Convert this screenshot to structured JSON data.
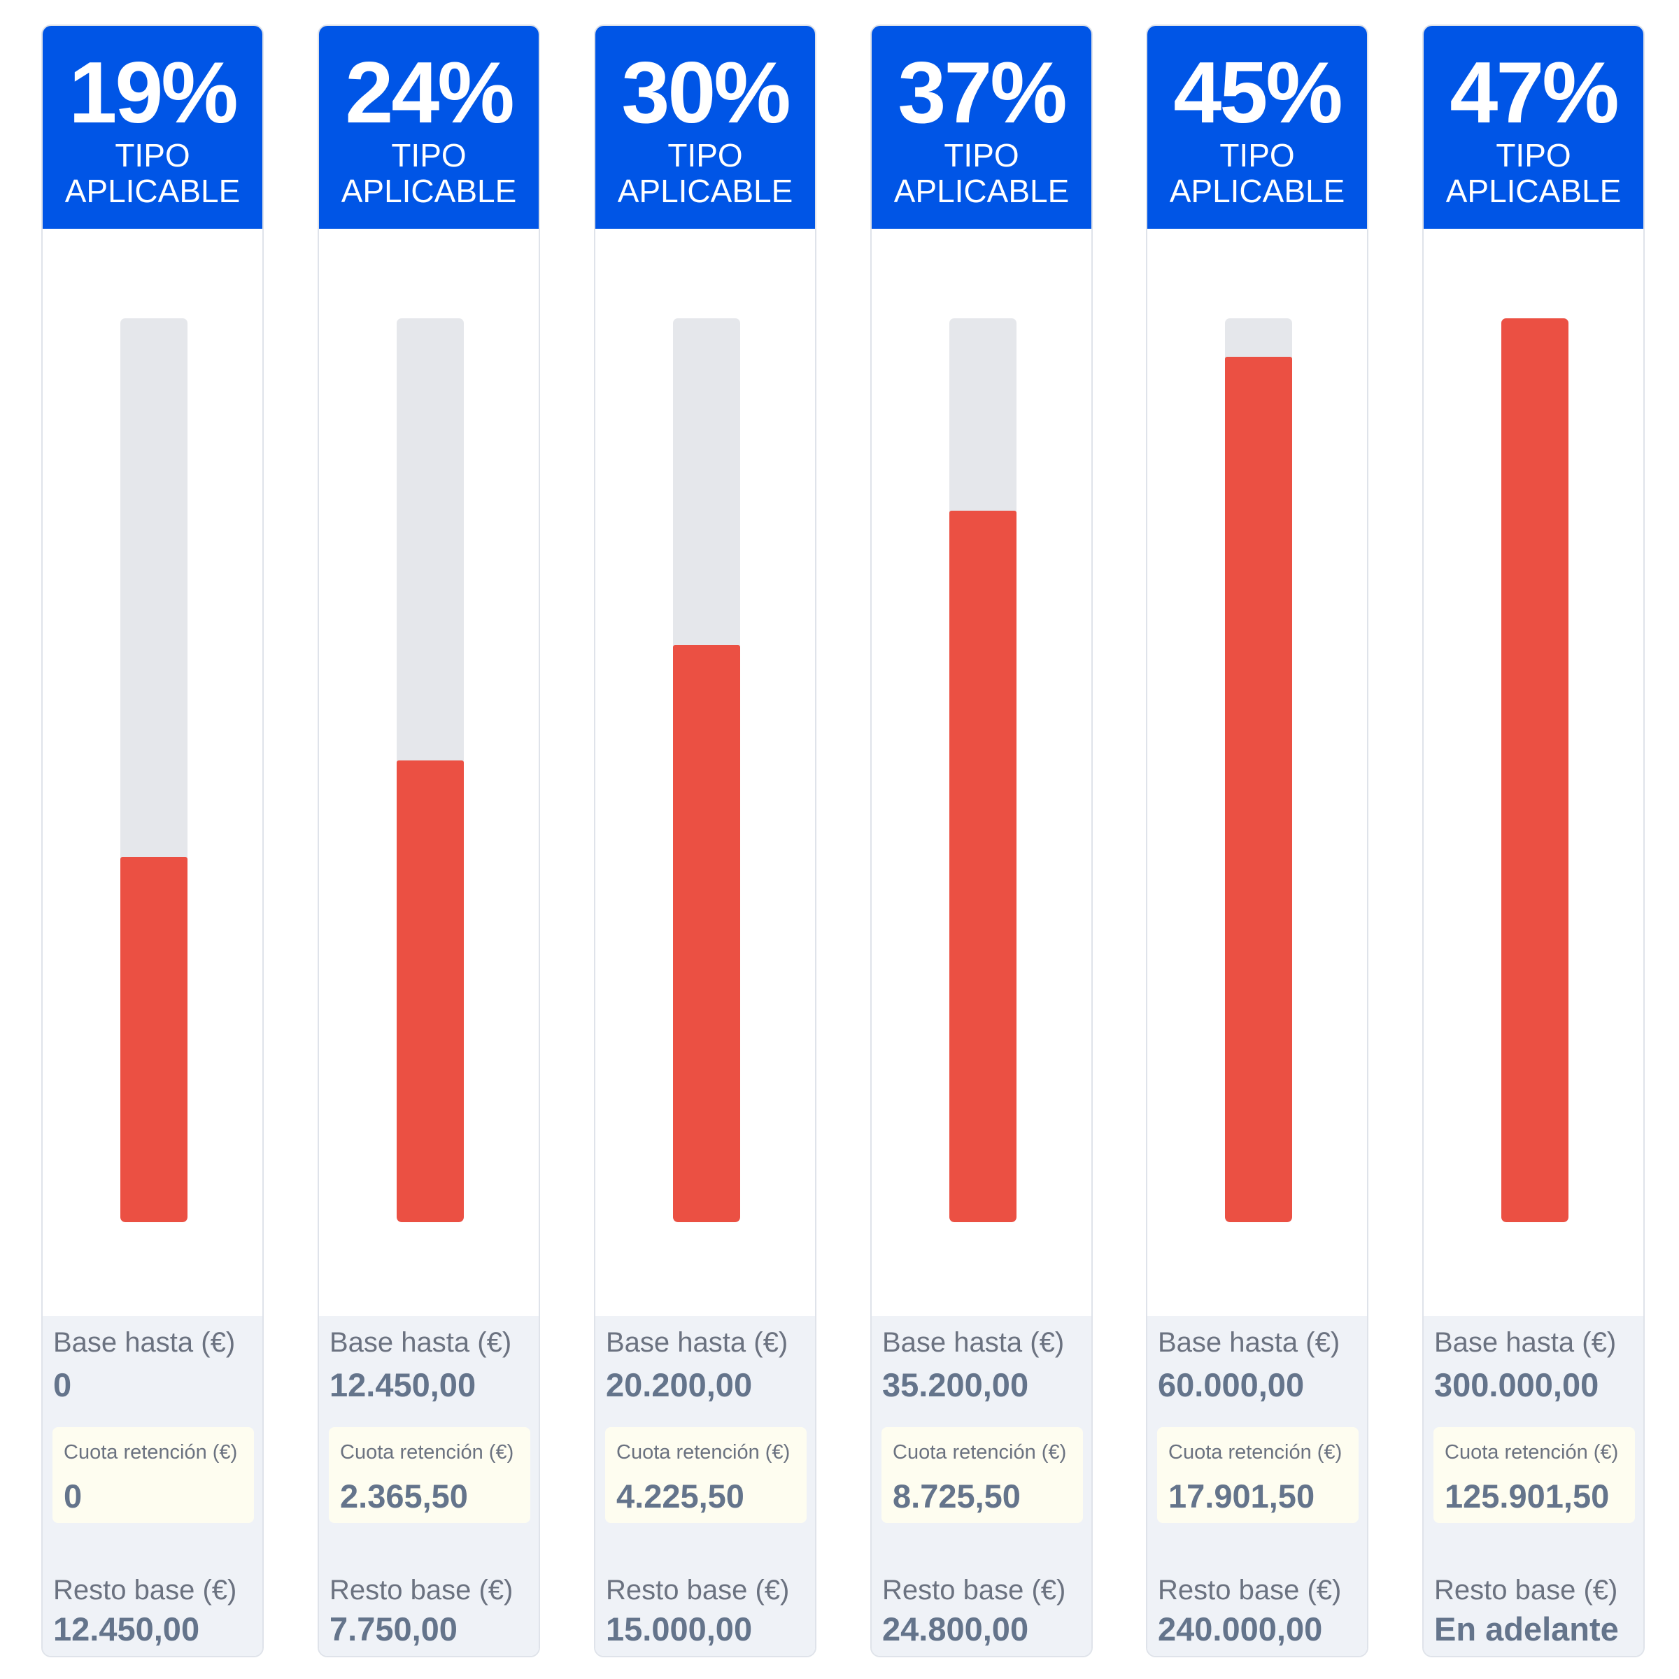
{
  "colors": {
    "header_blue": "#0055e6",
    "bar_red": "#eb5043",
    "bar_track": "#e5e7eb",
    "footer_bg": "#eff2f7",
    "quota_bg": "#fefdf0",
    "text_gray": "#64748b"
  },
  "labels": {
    "rate_label_line1": "TIPO",
    "rate_label_line2": "APLICABLE",
    "base_hasta": "Base hasta (€)",
    "cuota_retencion": "Cuota retención (€)",
    "resto_base": "Resto base (€)"
  },
  "chart_data": {
    "type": "bar",
    "title": "",
    "xlabel": "",
    "ylabel": "",
    "ylim": [
      0,
      47
    ],
    "categories": [
      "19%",
      "24%",
      "30%",
      "37%",
      "45%",
      "47%"
    ],
    "values": [
      19,
      24,
      30,
      37,
      45,
      47
    ],
    "brackets": [
      {
        "rate": "19%",
        "value": 19,
        "base_hasta": "0",
        "cuota": "0",
        "resto": "12.450,00"
      },
      {
        "rate": "24%",
        "value": 24,
        "base_hasta": "12.450,00",
        "cuota": "2.365,50",
        "resto": "7.750,00"
      },
      {
        "rate": "30%",
        "value": 30,
        "base_hasta": "20.200,00",
        "cuota": "4.225,50",
        "resto": "15.000,00"
      },
      {
        "rate": "37%",
        "value": 37,
        "base_hasta": "35.200,00",
        "cuota": "8.725,50",
        "resto": "24.800,00"
      },
      {
        "rate": "45%",
        "value": 45,
        "base_hasta": "60.000,00",
        "cuota": "17.901,50",
        "resto": "240.000,00"
      },
      {
        "rate": "47%",
        "value": 47,
        "base_hasta": "300.000,00",
        "cuota": "125.901,50",
        "resto": "En adelante"
      }
    ]
  }
}
